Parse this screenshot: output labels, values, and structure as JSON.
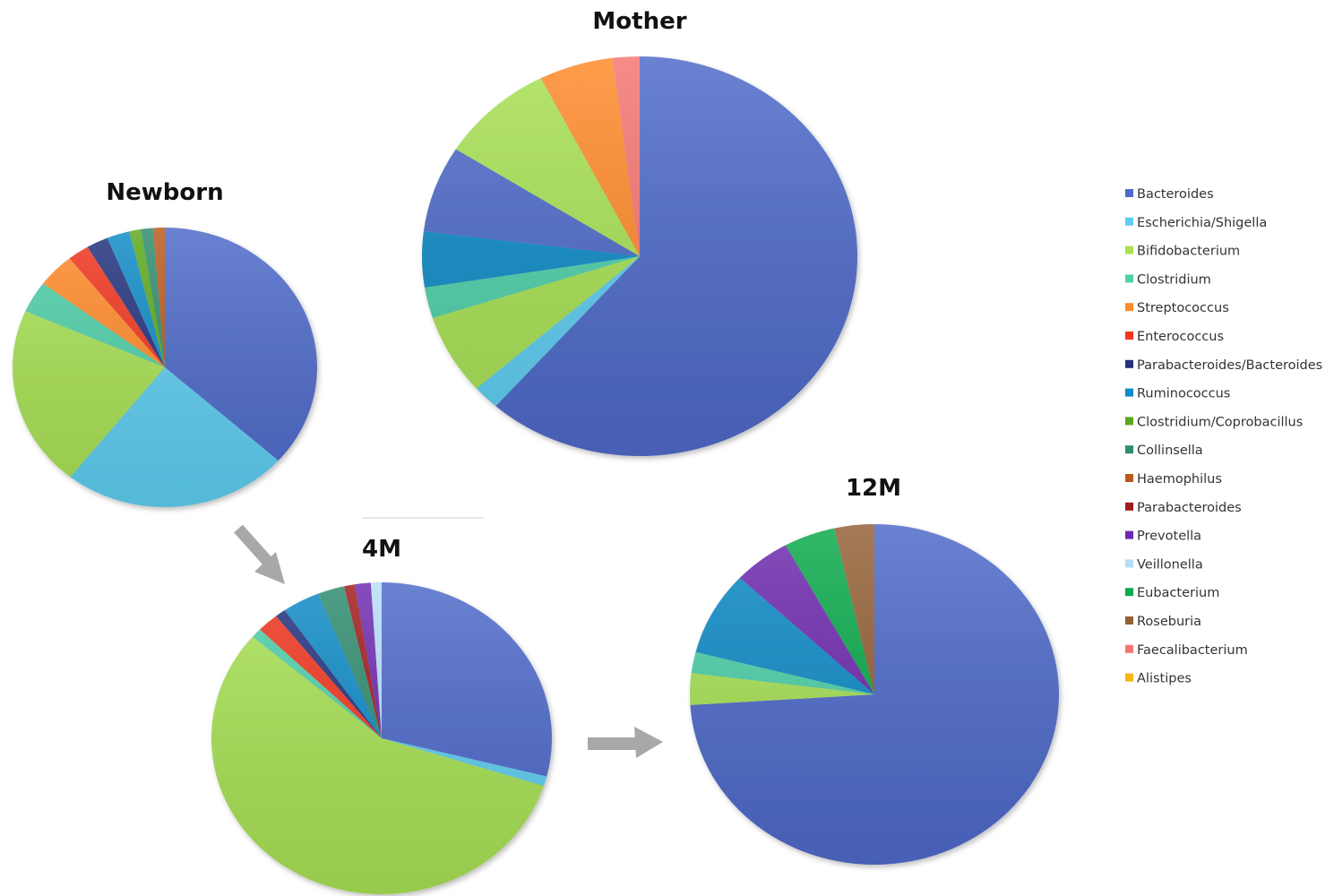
{
  "legend": [
    {
      "label": "Bacteroides",
      "color": "#4E6AC9"
    },
    {
      "label": "Escherichia/Shigella",
      "color": "#5FCDF0"
    },
    {
      "label": "Bifidobacterium",
      "color": "#A8E155"
    },
    {
      "label": "Clostridium",
      "color": "#4FCFA9"
    },
    {
      "label": "Streptococcus",
      "color": "#FF8A2A"
    },
    {
      "label": "Enterococcus",
      "color": "#F0361F"
    },
    {
      "label": "Parabacteroides/Bacteroides",
      "color": "#23337E"
    },
    {
      "label": "Ruminococcus",
      "color": "#0F8BC6"
    },
    {
      "label": "Clostridium/Coprobacillus",
      "color": "#5BA81E"
    },
    {
      "label": "Collinsella",
      "color": "#2E8C6E"
    },
    {
      "label": "Haemophilus",
      "color": "#B85A1E"
    },
    {
      "label": "Parabacteroides",
      "color": "#A11C1C"
    },
    {
      "label": "Prevotella",
      "color": "#6E2AAF"
    },
    {
      "label": "Veillonella",
      "color": "#B7DDF8"
    },
    {
      "label": "Eubacterium",
      "color": "#0BAA4C"
    },
    {
      "label": "Roseburia",
      "color": "#936136"
    },
    {
      "label": "Faecalibacterium",
      "color": "#F47673"
    },
    {
      "label": "Alistipes",
      "color": "#F7B515"
    }
  ],
  "chart_data": [
    {
      "type": "pie",
      "title": "Newborn",
      "slices": [
        {
          "label": "Bacteroides",
          "value": 35.0
        },
        {
          "label": "Escherichia/Shigella",
          "value": 23.0
        },
        {
          "label": "Bifidobacterium",
          "value": 20.0
        },
        {
          "label": "Clostridium",
          "value": 3.5
        },
        {
          "label": "Streptococcus",
          "value": 3.8
        },
        {
          "label": "Enterococcus",
          "value": 2.2
        },
        {
          "label": "Parabacteroides/Bacteroides",
          "value": 2.2
        },
        {
          "label": "Ruminococcus",
          "value": 2.3
        },
        {
          "label": "Clostridium/Coprobacillus",
          "value": 1.2
        },
        {
          "label": "Collinsella",
          "value": 1.2
        },
        {
          "label": "Haemophilus",
          "value": 1.2
        }
      ]
    },
    {
      "type": "pie",
      "title": "Mother",
      "slices": [
        {
          "label": "Bacteroides",
          "value": 61.5
        },
        {
          "label": "Escherichia/Shigella",
          "value": 2.0
        },
        {
          "label": "Bifidobacterium",
          "value": 6.5
        },
        {
          "label": "Clostridium",
          "value": 2.5
        },
        {
          "label": "Ruminococcus",
          "value": 4.5
        },
        {
          "label": "Bacteroides",
          "value": 7.0
        },
        {
          "label": "Bifidobacterium",
          "value": 8.5
        },
        {
          "label": "Streptococcus",
          "value": 5.5
        },
        {
          "label": "Faecalibacterium",
          "value": 2.0
        }
      ]
    },
    {
      "type": "pie",
      "title": "4M",
      "slices": [
        {
          "label": "Bacteroides",
          "value": 28.5
        },
        {
          "label": "Escherichia/Shigella",
          "value": 1.0
        },
        {
          "label": "Bifidobacterium",
          "value": 55.5
        },
        {
          "label": "Clostridium",
          "value": 1.0
        },
        {
          "label": "Enterococcus",
          "value": 2.0
        },
        {
          "label": "Parabacteroides/Bacteroides",
          "value": 1.0
        },
        {
          "label": "Ruminococcus",
          "value": 3.5
        },
        {
          "label": "Collinsella",
          "value": 2.5
        },
        {
          "label": "Parabacteroides",
          "value": 1.0
        },
        {
          "label": "Prevotella",
          "value": 1.5
        },
        {
          "label": "Veillonella",
          "value": 1.0
        }
      ]
    },
    {
      "type": "pie",
      "title": "12M",
      "slices": [
        {
          "label": "Bacteroides",
          "value": 74.0
        },
        {
          "label": "Bifidobacterium",
          "value": 3.0
        },
        {
          "label": "Clostridium",
          "value": 2.0
        },
        {
          "label": "Ruminococcus",
          "value": 8.0
        },
        {
          "label": "Prevotella",
          "value": 5.0
        },
        {
          "label": "Eubacterium",
          "value": 4.5
        },
        {
          "label": "Roseburia",
          "value": 3.5
        }
      ]
    }
  ]
}
